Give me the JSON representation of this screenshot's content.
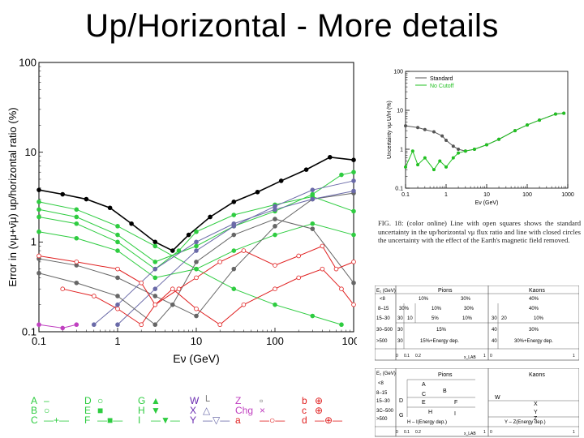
{
  "slide": {
    "title": "Up/Horizontal - More details"
  },
  "colors": {
    "black": "#000000",
    "gray": "#666666",
    "blue": "#6a6aa8",
    "green": "#2ecc40",
    "red": "#e02020",
    "magenta": "#c040c0"
  },
  "chart_data": [
    {
      "type": "line",
      "xscale": "log",
      "yscale": "log",
      "xlim": [
        0.1,
        1000
      ],
      "ylim": [
        0.1,
        100
      ],
      "xticks": [
        "0.1",
        "1",
        "10",
        "100",
        "1000"
      ],
      "yticks": [
        "0.1",
        "1",
        "10",
        "100"
      ],
      "xlabel": "Eν (GeV)",
      "ylabel": "Error in (νμ+ν̄μ) up/horizontal ratio (%)",
      "series": [
        {
          "name": "total",
          "color": "#000000",
          "x": [
            0.1,
            0.2,
            0.4,
            0.8,
            1.5,
            3,
            5,
            8,
            15,
            30,
            60,
            120,
            250,
            500,
            1000
          ],
          "y": [
            3.8,
            3.4,
            3.0,
            2.4,
            1.6,
            1.0,
            0.8,
            1.2,
            1.9,
            2.8,
            3.6,
            4.8,
            6.4,
            8.8,
            8.2
          ]
        },
        {
          "name": "A",
          "color": "#2ecc40",
          "x": [
            0.1,
            0.3,
            1,
            3,
            10,
            30,
            100,
            300,
            700
          ],
          "y": [
            2.8,
            2.3,
            1.5,
            0.9,
            0.5,
            0.3,
            0.2,
            0.15,
            0.12
          ]
        },
        {
          "name": "D",
          "color": "#2ecc40",
          "x": [
            0.1,
            0.3,
            1,
            3,
            6,
            10,
            30,
            100,
            300,
            1000
          ],
          "y": [
            1.9,
            1.6,
            1.0,
            0.5,
            0.8,
            1.3,
            2.0,
            2.6,
            3.2,
            2.2
          ]
        },
        {
          "name": "G",
          "color": "#2ecc40",
          "x": [
            0.1,
            0.3,
            1,
            3,
            10,
            30,
            100,
            300,
            700,
            1000
          ],
          "y": [
            2.3,
            1.9,
            1.2,
            0.6,
            0.9,
            1.5,
            2.2,
            3.4,
            5.6,
            6.0
          ]
        },
        {
          "name": "H",
          "color": "#2ecc40",
          "x": [
            0.1,
            0.3,
            1,
            3,
            10,
            30,
            100,
            300,
            1000
          ],
          "y": [
            1.3,
            1.1,
            0.8,
            0.4,
            0.5,
            0.8,
            1.2,
            1.6,
            1.2
          ]
        },
        {
          "name": "W",
          "color": "#666666",
          "x": [
            0.1,
            0.3,
            1,
            3,
            10,
            30,
            100,
            300,
            1000
          ],
          "y": [
            0.65,
            0.55,
            0.4,
            0.25,
            0.15,
            0.5,
            1.5,
            3.0,
            3.5
          ]
        },
        {
          "name": "X",
          "color": "#6a6aa8",
          "x": [
            1,
            3,
            10,
            30,
            100,
            300,
            1000
          ],
          "y": [
            0.12,
            0.3,
            0.8,
            1.5,
            2.5,
            3.8,
            4.8
          ]
        },
        {
          "name": "Y",
          "color": "#6a6aa8",
          "x": [
            0.5,
            1,
            3,
            10,
            30,
            100,
            300,
            1000
          ],
          "y": [
            0.12,
            0.2,
            0.5,
            1.0,
            1.6,
            2.3,
            3.0,
            3.7
          ]
        },
        {
          "name": "Z",
          "color": "#666666",
          "x": [
            0.1,
            0.3,
            1,
            3,
            5,
            10,
            30,
            100,
            300,
            1000
          ],
          "y": [
            0.45,
            0.35,
            0.25,
            0.12,
            0.2,
            0.6,
            1.2,
            1.8,
            1.4,
            0.35
          ]
        },
        {
          "name": "a",
          "color": "#e02020",
          "x": [
            0.1,
            0.3,
            1,
            2,
            3,
            6,
            10,
            20,
            40,
            100,
            200,
            400,
            600,
            1000
          ],
          "y": [
            0.7,
            0.6,
            0.5,
            0.35,
            0.2,
            0.3,
            0.4,
            0.6,
            0.8,
            0.55,
            0.7,
            0.9,
            0.5,
            0.6
          ]
        },
        {
          "name": "b",
          "color": "#e02020",
          "x": [
            0.2,
            0.5,
            1,
            2,
            3,
            5,
            10,
            20,
            40,
            100,
            200,
            400,
            700,
            1000
          ],
          "y": [
            0.3,
            0.25,
            0.18,
            0.12,
            0.2,
            0.3,
            0.18,
            0.12,
            0.2,
            0.3,
            0.4,
            0.5,
            0.3,
            0.2
          ]
        },
        {
          "name": "Chg",
          "color": "#c040c0",
          "x": [
            0.1,
            0.2,
            0.3
          ],
          "y": [
            0.12,
            0.11,
            0.12
          ]
        }
      ]
    },
    {
      "type": "line",
      "xscale": "log",
      "yscale": "log",
      "xlim": [
        0.1,
        1000
      ],
      "ylim": [
        0.1,
        100
      ],
      "xticks": [
        "0.1",
        "1",
        "10",
        "100",
        "1000"
      ],
      "yticks": [
        "0.1",
        "1",
        "10",
        "100"
      ],
      "xlabel": "Eν (GeV)",
      "ylabel": "Uncertainty νμ U/H (%)",
      "legend": "top-left",
      "series": [
        {
          "name": "Standard",
          "color": "#555555",
          "x": [
            0.1,
            0.2,
            0.3,
            0.5,
            0.8,
            1,
            1.5,
            2,
            3,
            5,
            10,
            20,
            50,
            100,
            200,
            500,
            800
          ],
          "y": [
            4.0,
            3.6,
            3.2,
            2.8,
            2.2,
            1.7,
            1.2,
            1.0,
            0.9,
            1.0,
            1.3,
            1.8,
            3.0,
            4.2,
            5.6,
            8.0,
            8.4
          ]
        },
        {
          "name": "No Cutoff",
          "color": "#22c022",
          "x": [
            0.1,
            0.15,
            0.2,
            0.3,
            0.5,
            0.7,
            1,
            1.5,
            2,
            3,
            5,
            10,
            20,
            50,
            100,
            200,
            500,
            800
          ],
          "y": [
            0.35,
            0.9,
            0.4,
            0.6,
            0.3,
            0.5,
            0.35,
            0.6,
            0.8,
            0.9,
            1.0,
            1.3,
            1.8,
            3.0,
            4.2,
            5.6,
            8.0,
            8.4
          ]
        }
      ]
    }
  ],
  "figure_caption": "FIG. 18: (color online) Line with open squares shows the standard uncertainty in the up/horizontal νμ flux ratio and line with closed circles the uncertainty with the effect of the Earth's magnetic field removed.",
  "legend_labels": [
    [
      "A",
      "B",
      "C"
    ],
    [
      "D",
      "E",
      "F"
    ],
    [
      "G",
      "H",
      "I"
    ],
    [
      "W",
      "X",
      "Y"
    ],
    [
      "Z",
      "Chg",
      "a"
    ],
    [
      "b",
      "c",
      "d"
    ]
  ],
  "table1": {
    "headers": {
      "e": "E₁ (GeV)",
      "pions": "Pions",
      "kaons": "Kaons",
      "xlab": "x_LAB"
    },
    "rows": [
      [
        "<8",
        "10%",
        "30%",
        "40%"
      ],
      [
        "8–15",
        "30%",
        "10%",
        "30%",
        "40%"
      ],
      [
        "15–30",
        "30",
        "10",
        "5%",
        "10%",
        "30",
        "20",
        "10%"
      ],
      [
        "30–500",
        "30",
        "15%",
        "40",
        "30%"
      ],
      [
        ">500",
        "30",
        "15%+Energy dep.",
        "40",
        "30%+Energy dep."
      ]
    ],
    "ticks": [
      "0",
      "0.1",
      "0.2",
      "1",
      "0",
      "1"
    ]
  },
  "table2": {
    "headers": {
      "e": "E₁ (GeV)",
      "pions": "Pions",
      "kaons": "Kaons",
      "xlab": "x_LAB"
    },
    "cells": [
      "A",
      "B",
      "C",
      "D",
      "E",
      "F",
      "G",
      "H",
      "I",
      "W",
      "X",
      "Y",
      "Z",
      "H – I(Energy dep.)",
      "Y – Z(Energy dep.)"
    ],
    "rows": [
      "<8",
      "8–15",
      "15–30",
      "3C–500",
      ">500"
    ],
    "ticks": [
      "0",
      "0.1",
      "0.2",
      "1",
      "0",
      "1"
    ]
  }
}
